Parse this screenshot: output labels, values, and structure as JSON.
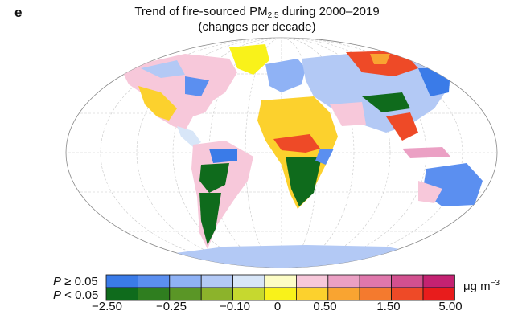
{
  "panel": {
    "letter": "e"
  },
  "title": {
    "line1_prefix": "Trend of fire-sourced PM",
    "line1_sub": "2.5",
    "line1_suffix": " during 2000–2019",
    "line2": "(changes per decade)"
  },
  "legend": {
    "row_top_label_p": "P",
    "row_top_label_rest": " ≥ 0.05",
    "row_bottom_label_p": "P",
    "row_bottom_label_rest": " < 0.05",
    "unit_base": "μg m",
    "unit_exp": "−3",
    "ticks": [
      "−2.50",
      "−0.25",
      "−0.10",
      "0",
      "0.50",
      "1.50",
      "5.00"
    ],
    "colors_significant_false": [
      "#3a7be8",
      "#5b8ff0",
      "#8fb2f5",
      "#b3c9f5",
      "#d8e6f8",
      "#fdfdc6",
      "#f7c8da",
      "#eba0c4",
      "#df77ab",
      "#d2508f",
      "#c42272"
    ],
    "colors_significant_true": [
      "#0f6b1c",
      "#2f7e1f",
      "#5a9626",
      "#8cb32b",
      "#c6d82f",
      "#f9f21a",
      "#fcd12d",
      "#f9a431",
      "#f47a2e",
      "#ee4a27",
      "#e81c1c"
    ]
  }
}
